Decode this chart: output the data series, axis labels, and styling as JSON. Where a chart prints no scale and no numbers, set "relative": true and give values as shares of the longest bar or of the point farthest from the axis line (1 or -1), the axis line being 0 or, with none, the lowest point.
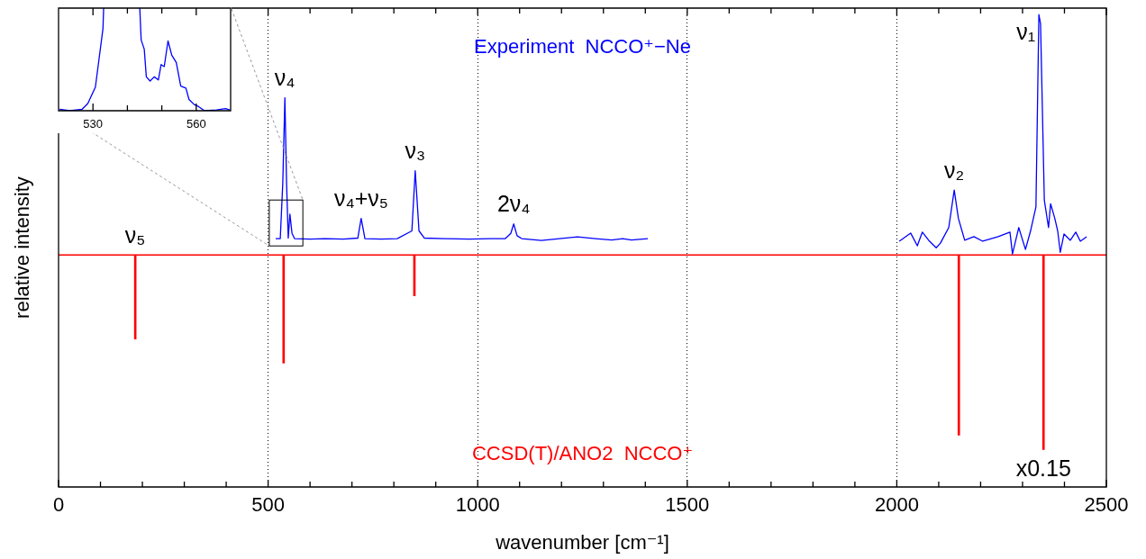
{
  "chart_data": [
    {
      "type": "line",
      "xlabel": "wavenumber [cm⁻¹]",
      "ylabel": "relative intensity",
      "relative": true,
      "xlim": [
        0,
        2500
      ],
      "xticks": [
        0,
        {
          "value": 100,
          "label": null
        },
        {
          "value": 200,
          "label": null
        },
        {
          "value": 300,
          "label": null
        },
        {
          "value": 400,
          "label": null
        },
        500,
        {
          "value": 600,
          "label": null
        },
        {
          "value": 700,
          "label": null
        },
        {
          "value": 800,
          "label": null
        },
        {
          "value": 900,
          "label": null
        },
        1000,
        {
          "value": 1100,
          "label": null
        },
        {
          "value": 1200,
          "label": null
        },
        {
          "value": 1300,
          "label": null
        },
        {
          "value": 1400,
          "label": null
        },
        1500,
        {
          "value": 1600,
          "label": null
        },
        {
          "value": 1700,
          "label": null
        },
        {
          "value": 1800,
          "label": null
        },
        {
          "value": 1900,
          "label": null
        },
        2000,
        {
          "value": 2100,
          "label": null
        },
        {
          "value": 2200,
          "label": null
        },
        {
          "value": 2300,
          "label": null
        },
        {
          "value": 2400,
          "label": null
        },
        2500
      ],
      "grid": "x",
      "marker": "none",
      "ref_lines": [
        {
          "axis": "y",
          "value": 0,
          "color": "#ff0000"
        }
      ],
      "annotations": [
        {
          "text": "ν₅",
          "x": 183,
          "y": 0
        },
        {
          "text": "ν₄",
          "x": 540,
          "y": 0.654
        },
        {
          "text": "ν₄+ν₅",
          "x": 722,
          "y": 0.152
        },
        {
          "text": "ν₃",
          "x": 851,
          "y": 0.35
        },
        {
          "text": "2ν₄",
          "x": 1086,
          "y": 0.129
        },
        {
          "text": "ν₂",
          "x": 2137,
          "y": 0.27
        },
        {
          "text": "ν₁",
          "x": 2339,
          "y": 1.0
        },
        {
          "text": "x0.15",
          "x": 2350,
          "y": -0.81
        }
      ],
      "series": [
        {
          "name": "Experiment  NCCO⁺−Ne",
          "color": "#0000ff",
          "x": [
            518,
            529,
            535,
            540,
            544,
            548,
            552,
            557,
            563,
            600,
            636,
            680,
            714,
            722,
            731,
            770,
            808,
            843,
            851,
            860,
            873,
            920,
            980,
            1030,
            1066,
            1079,
            1086,
            1094,
            1105,
            1152,
            1195,
            1238,
            1281,
            1320,
            1346,
            1367,
            1406,
            1700,
            2006,
            2033,
            2049,
            2061,
            2076,
            2094,
            2104,
            2124,
            2137,
            2147,
            2162,
            2184,
            2205,
            2242,
            2270,
            2276,
            2291,
            2307,
            2319,
            2332,
            2339,
            2343,
            2352,
            2362,
            2367,
            2377,
            2384,
            2390,
            2399,
            2414,
            2427,
            2438,
            2453
          ],
          "values": [
            0.068,
            0.068,
            0.3,
            0.654,
            0.3,
            0.07,
            0.17,
            0.09,
            0.068,
            0.066,
            0.068,
            0.066,
            0.07,
            0.152,
            0.068,
            0.066,
            0.068,
            0.1,
            0.35,
            0.1,
            0.07,
            0.068,
            0.066,
            0.068,
            0.068,
            0.09,
            0.129,
            0.08,
            0.068,
            0.06,
            0.068,
            0.075,
            0.068,
            0.062,
            0.068,
            0.062,
            0.068,
            null,
            0.057,
            0.091,
            0.038,
            0.095,
            0.061,
            0.03,
            0.049,
            0.114,
            0.27,
            0.152,
            0.061,
            0.076,
            0.057,
            0.076,
            0.095,
            0.004,
            0.114,
            0.023,
            0.099,
            0.2,
            1.0,
            0.962,
            0.228,
            0.114,
            0.213,
            0.152,
            0.099,
            0.011,
            0.087,
            0.061,
            0.095,
            0.057,
            0.076
          ]
        },
        {
          "name": "CCSD(T)/ANO2  NCCO⁺",
          "color": "#ff0000",
          "type": "bar",
          "x": [
            183,
            537,
            849,
            2148,
            2350
          ],
          "values": [
            -0.35,
            -0.45,
            -0.17,
            -0.75,
            -0.81
          ]
        }
      ]
    },
    {
      "type": "line",
      "relative": true,
      "xlim": [
        520,
        570
      ],
      "xticks": [
        530,
        {
          "value": 540,
          "label": null
        },
        {
          "value": 550,
          "label": null
        },
        560
      ],
      "marker": "none",
      "series": [
        {
          "color": "#0000ff",
          "x": [
            520.3,
            523.3,
            526.8,
            528.5,
            530.7,
            532.9,
            533.1,
            538,
            543.6,
            544.0,
            544.9,
            545.5,
            546.6,
            547.8,
            549.0,
            549.8,
            550.7,
            551.8,
            552.9,
            554.2,
            555.5,
            557.0,
            557.9,
            559.4,
            560.7,
            562.4,
            565.9,
            568.5,
            569.8
          ],
          "values": [
            0.013,
            0,
            0.013,
            0.07,
            0.23,
            0.8,
            1.0,
            null,
            1.0,
            0.69,
            0.6,
            0.33,
            0.29,
            0.33,
            0.3,
            0.45,
            0.43,
            0.68,
            0.54,
            0.47,
            0.24,
            0.22,
            0.11,
            0.06,
            0.04,
            0,
            0.007,
            0.02,
            0.007
          ]
        }
      ]
    }
  ]
}
